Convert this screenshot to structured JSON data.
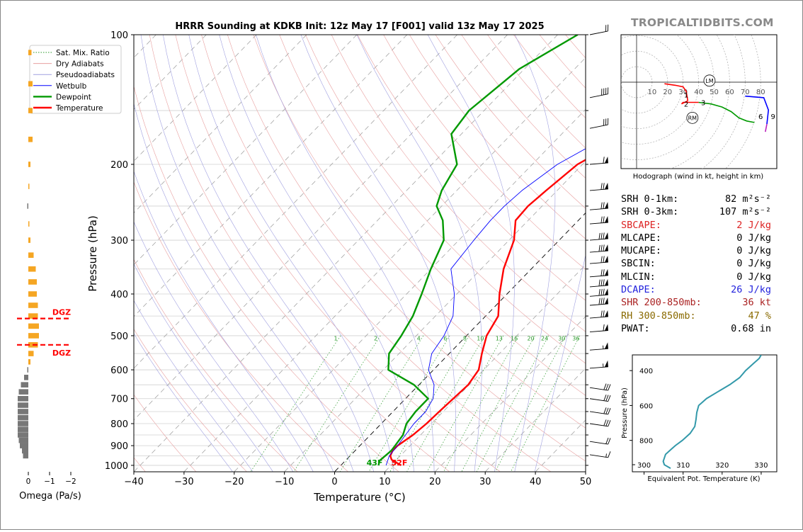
{
  "title": "HRRR Sounding at KDKB Init: 12z May 17 [F001] valid 13z May 17 2025",
  "brand": "TROPICALTIDBITS.COM",
  "chart_data": [
    {
      "type": "line",
      "title": "HRRR Sounding at KDKB Init: 12z May 17 [F001] valid 13z May 17 2025",
      "xlabel": "Temperature (°C)",
      "ylabel": "Pressure (hPa)",
      "xlim": [
        -40,
        50
      ],
      "ylim": [
        1035,
        100
      ],
      "y_scale": "log",
      "x_ticks": [
        "−40",
        "−30",
        "−20",
        "−10",
        "0",
        "10",
        "20",
        "30",
        "40",
        "50"
      ],
      "y_ticks": [
        "100",
        "200",
        "300",
        "400",
        "500",
        "600",
        "700",
        "800",
        "900",
        "1000"
      ],
      "grid": true,
      "legend_position": "top-left",
      "legend": [
        "Sat. Mix. Ratio",
        "Dry Adiabats",
        "Pseudoadiabats",
        "Wetbulb",
        "Dewpoint",
        "Temperature"
      ],
      "mixing_ratio_labels": [
        "1",
        "2",
        "4",
        "6",
        "8",
        "10",
        "13",
        "16",
        "20",
        "24",
        "30",
        "36"
      ],
      "surface_labels": {
        "dewpoint": "43F",
        "temperature": "52F"
      },
      "colors": {
        "temperature": "#ff0000",
        "dewpoint": "#009900",
        "wetbulb": "#0000ff",
        "dry_adiabat": "#e8a0a0",
        "moist_adiabat": "#a0a0e0",
        "mixing_ratio": "#2a9a2a"
      },
      "series": [
        {
          "name": "Temperature",
          "points": [
            [
              1000,
              12.0
            ],
            [
              985,
              10.5
            ],
            [
              970,
              9.0
            ],
            [
              950,
              8.0
            ],
            [
              925,
              7.5
            ],
            [
              900,
              7.5
            ],
            [
              850,
              8.5
            ],
            [
              800,
              9.0
            ],
            [
              750,
              9.2
            ],
            [
              700,
              9.5
            ],
            [
              650,
              9.8
            ],
            [
              600,
              9.0
            ],
            [
              550,
              6.5
            ],
            [
              500,
              4.0
            ],
            [
              450,
              2.5
            ],
            [
              400,
              -1.5
            ],
            [
              350,
              -5.5
            ],
            [
              300,
              -9.0
            ],
            [
              270,
              -12.5
            ],
            [
              250,
              -12.8
            ],
            [
              230,
              -12.2
            ],
            [
              200,
              -11.0
            ],
            [
              170,
              -6.0
            ],
            [
              150,
              -5.0
            ],
            [
              120,
              -4.0
            ],
            [
              100,
              -3.0
            ]
          ]
        },
        {
          "name": "Dewpoint",
          "points": [
            [
              1000,
              7.5
            ],
            [
              975,
              6.8
            ],
            [
              950,
              7.0
            ],
            [
              925,
              7.2
            ],
            [
              900,
              7.0
            ],
            [
              850,
              6.5
            ],
            [
              800,
              5.0
            ],
            [
              750,
              4.5
            ],
            [
              700,
              4.5
            ],
            [
              650,
              -1.0
            ],
            [
              600,
              -9.0
            ],
            [
              550,
              -12.0
            ],
            [
              500,
              -13.0
            ],
            [
              450,
              -14.5
            ],
            [
              400,
              -17.0
            ],
            [
              350,
              -20.0
            ],
            [
              300,
              -23.0
            ],
            [
              270,
              -27.0
            ],
            [
              250,
              -31.0
            ],
            [
              230,
              -33.0
            ],
            [
              200,
              -35.0
            ],
            [
              170,
              -42.0
            ],
            [
              150,
              -43.0
            ],
            [
              120,
              -41.0
            ],
            [
              100,
              -36.0
            ]
          ]
        },
        {
          "name": "Wetbulb",
          "points": [
            [
              1000,
              9.0
            ],
            [
              950,
              7.8
            ],
            [
              900,
              7.5
            ],
            [
              850,
              7.0
            ],
            [
              800,
              6.5
            ],
            [
              750,
              6.5
            ],
            [
              700,
              5.5
            ],
            [
              650,
              3.0
            ],
            [
              600,
              -1.0
            ],
            [
              550,
              -3.5
            ],
            [
              500,
              -4.5
            ],
            [
              450,
              -6.5
            ],
            [
              400,
              -10.5
            ],
            [
              350,
              -16.0
            ],
            [
              300,
              -17.0
            ],
            [
              270,
              -17.5
            ],
            [
              250,
              -17.5
            ],
            [
              230,
              -17.0
            ],
            [
              200,
              -15.0
            ],
            [
              170,
              -10.0
            ],
            [
              150,
              -8.0
            ],
            [
              120,
              -6.0
            ],
            [
              100,
              -3.0
            ]
          ]
        }
      ]
    },
    {
      "type": "bar",
      "title": "",
      "xlabel": "Omega (Pa/s)",
      "x_ticks": [
        "0",
        "−1",
        "−2"
      ],
      "xlim": [
        0.6,
        -2.2
      ],
      "dgz_label": "DGZ",
      "dgz_pressure": [
        456,
        525
      ],
      "bars": [
        {
          "p": 110,
          "w": -0.15
        },
        {
          "p": 130,
          "w": -0.2
        },
        {
          "p": 150,
          "w": -0.2
        },
        {
          "p": 175,
          "w": -0.2
        },
        {
          "p": 200,
          "w": -0.1
        },
        {
          "p": 225,
          "w": -0.05
        },
        {
          "p": 250,
          "w": 0.05
        },
        {
          "p": 275,
          "w": -0.05
        },
        {
          "p": 300,
          "w": -0.1
        },
        {
          "p": 325,
          "w": -0.25
        },
        {
          "p": 350,
          "w": -0.35
        },
        {
          "p": 375,
          "w": -0.4
        },
        {
          "p": 400,
          "w": -0.4
        },
        {
          "p": 425,
          "w": -0.45
        },
        {
          "p": 450,
          "w": -0.45
        },
        {
          "p": 475,
          "w": -0.5
        },
        {
          "p": 500,
          "w": -0.5
        },
        {
          "p": 525,
          "w": -0.45
        },
        {
          "p": 550,
          "w": -0.25
        },
        {
          "p": 575,
          "w": -0.1
        },
        {
          "p": 600,
          "w": 0.05
        },
        {
          "p": 625,
          "w": 0.2
        },
        {
          "p": 650,
          "w": 0.35
        },
        {
          "p": 675,
          "w": 0.45
        },
        {
          "p": 700,
          "w": 0.5
        },
        {
          "p": 725,
          "w": 0.5
        },
        {
          "p": 750,
          "w": 0.5
        },
        {
          "p": 775,
          "w": 0.5
        },
        {
          "p": 800,
          "w": 0.5
        },
        {
          "p": 825,
          "w": 0.5
        },
        {
          "p": 850,
          "w": 0.5
        },
        {
          "p": 875,
          "w": 0.45
        },
        {
          "p": 900,
          "w": 0.4
        },
        {
          "p": 925,
          "w": 0.3
        },
        {
          "p": 950,
          "w": 0.25
        }
      ]
    },
    {
      "type": "line",
      "title": "",
      "xlabel": "Hodograph (wind in kt, height in km)",
      "ring_labels": [
        "10",
        "20",
        "30",
        "40",
        "50",
        "60",
        "70",
        "80"
      ],
      "markers": {
        "LM": [
          47,
          1
        ],
        "RM": [
          36,
          -23
        ]
      },
      "height_labels": [
        "1",
        "2",
        "3",
        "6",
        "9"
      ],
      "series": [
        {
          "name": "0-1km",
          "color": "#ff0000",
          "points": [
            [
              18,
              -1
            ],
            [
              25,
              -2
            ],
            [
              30,
              -3
            ],
            [
              32,
              -6
            ],
            [
              33,
              -12
            ]
          ]
        },
        {
          "name": "1-3km",
          "color": "#ff0000",
          "points": [
            [
              33,
              -12
            ],
            [
              29,
              -14
            ],
            [
              30,
              -13
            ],
            [
              36,
              -13
            ],
            [
              40,
              -13
            ]
          ]
        },
        {
          "name": "3-6km",
          "color": "#009900",
          "points": [
            [
              40,
              -13
            ],
            [
              48,
              -14
            ],
            [
              55,
              -16
            ],
            [
              61,
              -19
            ],
            [
              66,
              -23
            ],
            [
              71,
              -25
            ],
            [
              76,
              -26
            ]
          ]
        },
        {
          "name": "6-9km",
          "color": "#0000ff",
          "points": [
            [
              70,
              -9
            ],
            [
              82,
              -10
            ],
            [
              85,
              -18
            ],
            [
              84,
              -27
            ]
          ]
        },
        {
          "name": "9+km",
          "color": "#bb22bb",
          "points": [
            [
              84,
              -27
            ],
            [
              83,
              -32
            ]
          ]
        }
      ]
    },
    {
      "type": "line",
      "title": "",
      "xlabel": "Equivalent Pot. Temperature (K)",
      "ylabel": "Pressure (hPa)",
      "x_ticks": [
        "300",
        "310",
        "320",
        "330"
      ],
      "y_ticks": [
        "400",
        "600",
        "800"
      ],
      "xlim": [
        297,
        334
      ],
      "ylim": [
        980,
        310
      ],
      "series": [
        {
          "name": "Theta-e",
          "color": "#3399aa",
          "points": [
            [
              960,
              306.8
            ],
            [
              940,
              305.2
            ],
            [
              920,
              304.9
            ],
            [
              880,
              305.5
            ],
            [
              850,
              307.0
            ],
            [
              830,
              308.0
            ],
            [
              800,
              309.8
            ],
            [
              760,
              311.8
            ],
            [
              720,
              313.0
            ],
            [
              680,
              313.3
            ],
            [
              640,
              313.5
            ],
            [
              600,
              314.0
            ],
            [
              560,
              316.0
            ],
            [
              520,
              319.0
            ],
            [
              480,
              322.0
            ],
            [
              440,
              324.5
            ],
            [
              400,
              326.0
            ],
            [
              360,
              328.0
            ],
            [
              330,
              329.5
            ],
            [
              310,
              330.0
            ]
          ]
        }
      ]
    }
  ],
  "barbs": [
    {
      "p": 100,
      "dir": "sw",
      "n50": 0,
      "n10": 2,
      "n5": 0
    },
    {
      "p": 140,
      "dir": "sw",
      "n50": 0,
      "n10": 4,
      "n5": 0
    },
    {
      "p": 165,
      "dir": "sw",
      "n50": 0,
      "n10": 3,
      "n5": 0
    },
    {
      "p": 200,
      "dir": "w",
      "n50": 1,
      "n10": 1,
      "n5": 0
    },
    {
      "p": 230,
      "dir": "w",
      "n50": 1,
      "n10": 2,
      "n5": 0
    },
    {
      "p": 255,
      "dir": "w",
      "n50": 1,
      "n10": 2,
      "n5": 0
    },
    {
      "p": 275,
      "dir": "w",
      "n50": 1,
      "n10": 2,
      "n5": 0
    },
    {
      "p": 300,
      "dir": "w",
      "n50": 1,
      "n10": 3,
      "n5": 0
    },
    {
      "p": 320,
      "dir": "w",
      "n50": 1,
      "n10": 3,
      "n5": 0
    },
    {
      "p": 340,
      "dir": "w",
      "n50": 1,
      "n10": 2,
      "n5": 0
    },
    {
      "p": 365,
      "dir": "w",
      "n50": 1,
      "n10": 2,
      "n5": 0
    },
    {
      "p": 385,
      "dir": "w",
      "n50": 1,
      "n10": 3,
      "n5": 0
    },
    {
      "p": 405,
      "dir": "w",
      "n50": 1,
      "n10": 3,
      "n5": 0
    },
    {
      "p": 425,
      "dir": "w",
      "n50": 1,
      "n10": 3,
      "n5": 0
    },
    {
      "p": 455,
      "dir": "w",
      "n50": 1,
      "n10": 2,
      "n5": 0
    },
    {
      "p": 490,
      "dir": "w",
      "n50": 1,
      "n10": 1,
      "n5": 0
    },
    {
      "p": 540,
      "dir": "w",
      "n50": 1,
      "n10": 0,
      "n5": 1
    },
    {
      "p": 595,
      "dir": "w",
      "n50": 1,
      "n10": 0,
      "n5": 1
    },
    {
      "p": 660,
      "dir": "nw",
      "n50": 0,
      "n10": 3,
      "n5": 0
    },
    {
      "p": 700,
      "dir": "nw",
      "n50": 0,
      "n10": 3,
      "n5": 0
    },
    {
      "p": 750,
      "dir": "nw",
      "n50": 0,
      "n10": 3,
      "n5": 0
    },
    {
      "p": 800,
      "dir": "nw",
      "n50": 0,
      "n10": 3,
      "n5": 0
    },
    {
      "p": 880,
      "dir": "nw",
      "n50": 0,
      "n10": 2,
      "n5": 0
    },
    {
      "p": 945,
      "dir": "nw",
      "n50": 0,
      "n10": 1,
      "n5": 1
    }
  ],
  "params": [
    {
      "label": "SRH 0-1km:",
      "value": "82 m²s⁻²",
      "color": "#000000"
    },
    {
      "label": "SRH 0-3km:",
      "value": "107 m²s⁻²",
      "color": "#000000"
    },
    {
      "label": "SBCAPE:",
      "value": "2 J/kg",
      "color": "#dd2222"
    },
    {
      "label": "MLCAPE:",
      "value": "0 J/kg",
      "color": "#000000"
    },
    {
      "label": "MUCAPE:",
      "value": "0 J/kg",
      "color": "#000000"
    },
    {
      "label": "SBCIN:",
      "value": "0 J/kg",
      "color": "#000000"
    },
    {
      "label": "MLCIN:",
      "value": "0 J/kg",
      "color": "#000000"
    },
    {
      "label": "DCAPE:",
      "value": "26 J/kg",
      "color": "#2222dd"
    },
    {
      "label": "SHR 200-850mb:",
      "value": "36 kt",
      "color": "#aa2222"
    },
    {
      "label": "RH 300-850mb:",
      "value": "47 %",
      "color": "#8a6a00"
    },
    {
      "label": "PWAT:",
      "value": "0.68 in",
      "color": "#000000"
    }
  ]
}
